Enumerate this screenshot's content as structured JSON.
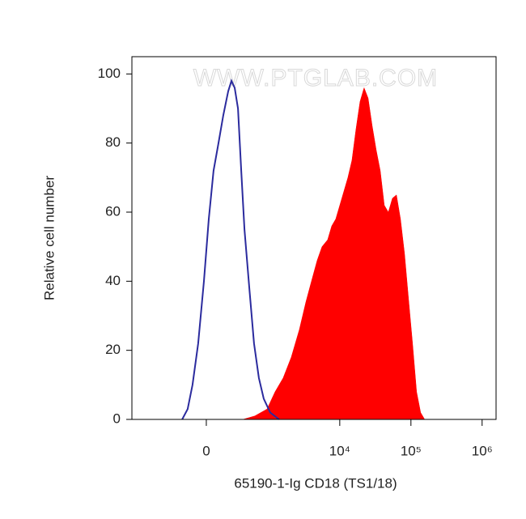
{
  "chart_data": {
    "type": "histogram-overlay",
    "watermark": "WWW.PTGLAB.COM",
    "xlabel": "65190-1-Ig CD18 (TS1/18)",
    "ylabel": "Relative cell number",
    "xscale": "biexponential",
    "xlim": [
      -1470,
      1570000
    ],
    "xticks": [
      0,
      {
        "value": 10000,
        "label": "10⁴"
      },
      {
        "value": 100000,
        "label": "10⁵"
      },
      {
        "value": 1000000,
        "label": "10⁶"
      }
    ],
    "ylim": [
      0,
      105
    ],
    "yticks": [
      0,
      20,
      40,
      60,
      80,
      100
    ],
    "series": [
      {
        "color": "#ff0000",
        "fill": true,
        "x": [
          394,
          614,
          933,
          1220,
          1592,
          2076,
          2702,
          3335,
          4005,
          4811,
          5631,
          6763,
          7706,
          8784,
          10010,
          11422,
          13016,
          14826,
          16901,
          19277,
          21974,
          25044,
          28542,
          32521,
          37060,
          42239,
          48140,
          54869,
          62531,
          71262,
          81221,
          92542,
          105465,
          120203,
          136998,
          156142
        ],
        "values": [
          0,
          1,
          3,
          8,
          12,
          18,
          26,
          34,
          40,
          46,
          50,
          52,
          56,
          58,
          62,
          66,
          70,
          75,
          84,
          92,
          96,
          93,
          85,
          78,
          72,
          62,
          60,
          64,
          65,
          58,
          48,
          35,
          22,
          8,
          2,
          0
        ]
      },
      {
        "color": "#2b2b9e",
        "fill": false,
        "x": [
          -231,
          -171,
          -123,
          -71,
          -21,
          21,
          63,
          108,
          154,
          205,
          242,
          281,
          324,
          370,
          420,
          504,
          596,
          706,
          835,
          1037,
          1394
        ],
        "values": [
          0,
          3,
          10,
          22,
          40,
          58,
          72,
          80,
          88,
          95,
          98,
          96,
          90,
          72,
          55,
          38,
          22,
          12,
          6,
          2,
          0
        ]
      }
    ]
  }
}
